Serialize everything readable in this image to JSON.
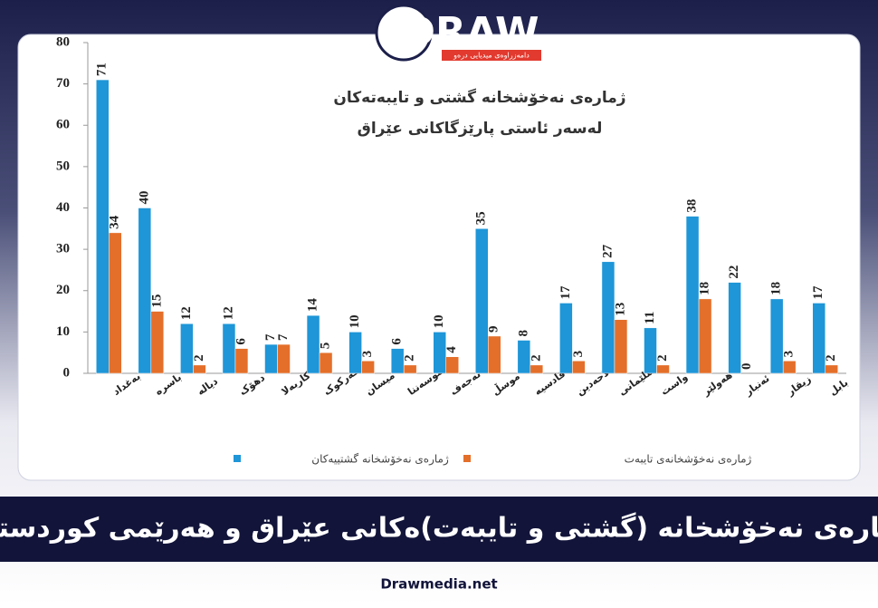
{
  "logo": {
    "title": "DRAW",
    "subtitle": "دامەزراوەی میدیایی درەو"
  },
  "chart_data": {
    "type": "bar",
    "title": "ژمارەی نەخۆشخانە گشتی و تایبەتەکان",
    "subtitle": "لەسەر ئاستی پارێزگاکانی عێراق",
    "categories": [
      "بەغداد",
      "باسرە",
      "دیالە",
      "دهۆک",
      "کاربەلا",
      "کەرکوک",
      "میسان",
      "موسەننا",
      "نەجەف",
      "موسڵ",
      "قادسیە",
      "سەلاحەدین",
      "سلێمانی",
      "واست",
      "هەولێر",
      "ئەنبار",
      "زیقار",
      "بابل"
    ],
    "series": [
      {
        "name": "ژمارەی نەخۆشخانە گشتییەکان",
        "color": "#1e96d8",
        "values": [
          71,
          40,
          12,
          12,
          7,
          14,
          10,
          6,
          10,
          35,
          8,
          17,
          27,
          11,
          38,
          22,
          18,
          17
        ]
      },
      {
        "name": "ژمارەی نەخۆشخانەی تایبەت",
        "color": "#e46f2a",
        "values": [
          34,
          15,
          2,
          6,
          7,
          5,
          3,
          2,
          4,
          9,
          2,
          3,
          13,
          2,
          18,
          0,
          3,
          2
        ]
      }
    ],
    "ylim": [
      0,
      80
    ],
    "yticks": [
      0,
      10,
      20,
      30,
      40,
      50,
      60,
      70,
      80
    ],
    "grid": false,
    "legend": "bottom"
  },
  "banner": "ژمارەی نەخۆشخانە (گشتی و تایبەت)ەکانی عێراق و هەرێمی کوردستان",
  "footer": "Drawmedia.net"
}
